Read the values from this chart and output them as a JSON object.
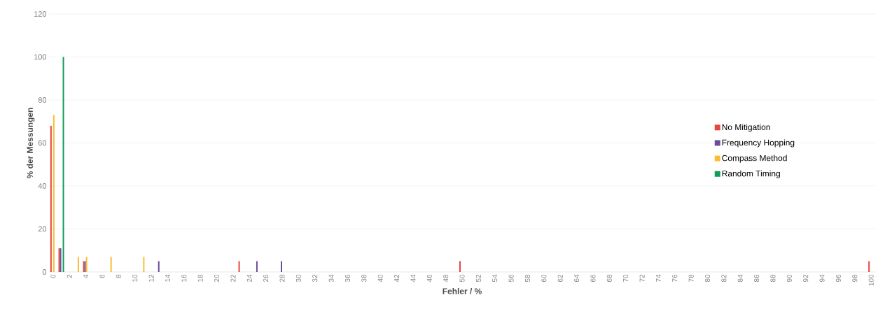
{
  "chart_data": {
    "type": "bar",
    "xlabel": "Fehler / %",
    "ylabel": "%  der  Messungen",
    "categories": [
      "0",
      null,
      "2",
      null,
      "4",
      null,
      "6",
      null,
      "8",
      null,
      "10",
      null,
      "12",
      null,
      "14",
      null,
      "16",
      null,
      "18",
      null,
      "20",
      null,
      "22",
      null,
      "24",
      null,
      "26",
      null,
      "28",
      null,
      "30",
      null,
      "32",
      null,
      "34",
      null,
      "36",
      null,
      "38",
      null,
      "40",
      null,
      "42",
      null,
      "44",
      null,
      "46",
      null,
      "48",
      null,
      "50",
      null,
      "52",
      null,
      "54",
      null,
      "56",
      null,
      "58",
      null,
      "60",
      null,
      "62",
      null,
      "64",
      null,
      "66",
      null,
      "68",
      null,
      "70",
      null,
      "72",
      null,
      "74",
      null,
      "76",
      null,
      "78",
      null,
      "80",
      null,
      "82",
      null,
      "84",
      null,
      "86",
      null,
      "88",
      null,
      "90",
      null,
      "92",
      null,
      "94",
      null,
      "96",
      null,
      "98",
      null,
      "100"
    ],
    "series": [
      {
        "name": "No Mitigation",
        "color": "#e8453c",
        "values": [
          68,
          11,
          null,
          null,
          5,
          null,
          null,
          null,
          null,
          null,
          null,
          null,
          null,
          null,
          null,
          null,
          null,
          null,
          null,
          null,
          null,
          null,
          null,
          5,
          null,
          null,
          null,
          null,
          null,
          null,
          null,
          null,
          null,
          null,
          null,
          null,
          null,
          null,
          null,
          null,
          null,
          null,
          null,
          null,
          null,
          null,
          null,
          null,
          null,
          null,
          5,
          null,
          null,
          null,
          null,
          null,
          null,
          null,
          null,
          null,
          null,
          null,
          null,
          null,
          null,
          null,
          null,
          null,
          null,
          null,
          null,
          null,
          null,
          null,
          null,
          null,
          null,
          null,
          null,
          null,
          null,
          null,
          null,
          null,
          null,
          null,
          null,
          null,
          null,
          null,
          null,
          null,
          null,
          null,
          null,
          null,
          null,
          null,
          null,
          null,
          5
        ]
      },
      {
        "name": "Frequency Hopping",
        "color": "#6a4c9c",
        "values": [
          null,
          11,
          null,
          null,
          5,
          null,
          null,
          null,
          null,
          null,
          null,
          null,
          null,
          5,
          null,
          null,
          null,
          null,
          null,
          null,
          null,
          null,
          null,
          null,
          null,
          5,
          null,
          null,
          5,
          null,
          null,
          null,
          null,
          null,
          null,
          null,
          null,
          null,
          null,
          null,
          null,
          null,
          null,
          null,
          null,
          null,
          null,
          null,
          null,
          null,
          null,
          null,
          null,
          null,
          null,
          null,
          null,
          null,
          null,
          null,
          null,
          null,
          null,
          null,
          null,
          null,
          null,
          null,
          null,
          null,
          null,
          null,
          null,
          null,
          null,
          null,
          null,
          null,
          null,
          null,
          null,
          null,
          null,
          null,
          null,
          null,
          null,
          null,
          null,
          null,
          null,
          null,
          null,
          null,
          null,
          null,
          null,
          null,
          null,
          null,
          null
        ]
      },
      {
        "name": "Compass Method",
        "color": "#fbbc34",
        "values": [
          73,
          null,
          null,
          7,
          7,
          null,
          null,
          7,
          null,
          null,
          null,
          7,
          null,
          null,
          null,
          null,
          null,
          null,
          null,
          null,
          null,
          null,
          null,
          null,
          null,
          null,
          null,
          null,
          null,
          null,
          null,
          null,
          null,
          null,
          null,
          null,
          null,
          null,
          null,
          null,
          null,
          null,
          null,
          null,
          null,
          null,
          null,
          null,
          null,
          null,
          null,
          null,
          null,
          null,
          null,
          null,
          null,
          null,
          null,
          null,
          null,
          null,
          null,
          null,
          null,
          null,
          null,
          null,
          null,
          null,
          null,
          null,
          null,
          null,
          null,
          null,
          null,
          null,
          null,
          null,
          null,
          null,
          null,
          null,
          null,
          null,
          null,
          null,
          null,
          null,
          null,
          null,
          null,
          null,
          null,
          null,
          null,
          null,
          null,
          null,
          null
        ]
      },
      {
        "name": "Random Timing",
        "color": "#0f9d58",
        "values": [
          null,
          100,
          null,
          null,
          null,
          null,
          null,
          null,
          null,
          null,
          null,
          null,
          null,
          null,
          null,
          null,
          null,
          null,
          null,
          null,
          null,
          null,
          null,
          null,
          null,
          null,
          null,
          null,
          null,
          null,
          null,
          null,
          null,
          null,
          null,
          null,
          null,
          null,
          null,
          null,
          null,
          null,
          null,
          null,
          null,
          null,
          null,
          null,
          null,
          null,
          null,
          null,
          null,
          null,
          null,
          null,
          null,
          null,
          null,
          null,
          null,
          null,
          null,
          null,
          null,
          null,
          null,
          null,
          null,
          null,
          null,
          null,
          null,
          null,
          null,
          null,
          null,
          null,
          null,
          null,
          null,
          null,
          null,
          null,
          null,
          null,
          null,
          null,
          null,
          null,
          null,
          null,
          null,
          null,
          null,
          null,
          null,
          null,
          null,
          null,
          null
        ]
      }
    ],
    "ylim": [
      0,
      120
    ],
    "yticks": [
      0,
      20,
      40,
      60,
      80,
      100,
      120
    ],
    "grid": "y",
    "legend": "right"
  }
}
